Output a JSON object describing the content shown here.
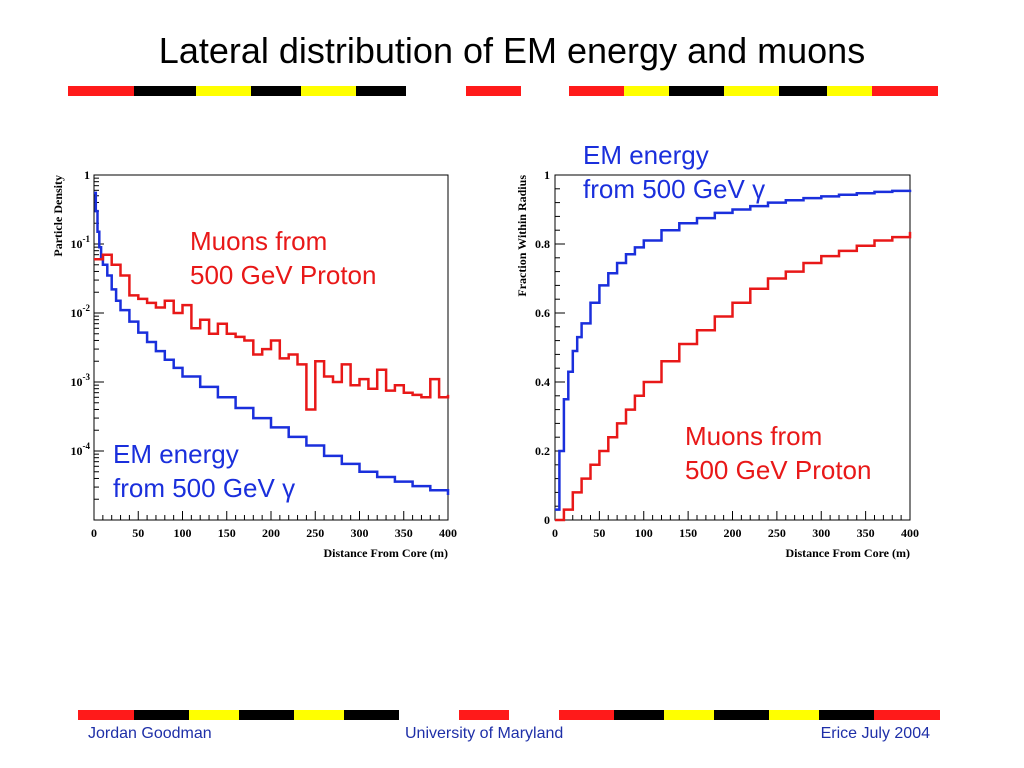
{
  "slide": {
    "title": "Lateral distribution of EM energy and muons",
    "footer": {
      "left": "Jordan Goodman",
      "center": "University of Maryland",
      "right": "Erice July 2004"
    },
    "colors": {
      "band_red": "#ff1a1a",
      "band_black": "#000000",
      "band_yellow": "#ffff00",
      "footer_text": "#1e2fa8",
      "em_series": "#1a2fdc",
      "muon_series": "#e81818"
    }
  },
  "chart_data": [
    {
      "type": "line",
      "step": true,
      "log_y": true,
      "xlabel": "Distance From Core (m)",
      "ylabel": "Particle Density",
      "xlim": [
        0,
        400
      ],
      "ylim": [
        1e-05,
        1
      ],
      "x_ticks": [
        "0",
        "50",
        "100",
        "150",
        "200",
        "250",
        "300",
        "350",
        "400"
      ],
      "y_ticks": [
        "1",
        "10^-1",
        "10^-2",
        "10^-3",
        "10^-4"
      ],
      "annotations": [
        {
          "lines": [
            "Muons from",
            "500 GeV Proton"
          ],
          "series": "muon"
        },
        {
          "lines": [
            "EM energy",
            "from 500 GeV γ"
          ],
          "series": "em"
        }
      ],
      "series": [
        {
          "key": "em",
          "color": "#1a2fdc",
          "x": [
            0,
            2,
            4,
            6,
            8,
            10,
            15,
            20,
            25,
            30,
            40,
            50,
            60,
            70,
            80,
            90,
            100,
            120,
            140,
            160,
            180,
            200,
            220,
            240,
            260,
            280,
            300,
            320,
            340,
            360,
            380,
            400
          ],
          "values": [
            0.55,
            0.3,
            0.15,
            0.09,
            0.065,
            0.05,
            0.035,
            0.022,
            0.015,
            0.011,
            0.0075,
            0.0052,
            0.0038,
            0.0028,
            0.0021,
            0.0016,
            0.0012,
            0.00085,
            0.0006,
            0.00042,
            0.0003,
            0.00022,
            0.00016,
            0.00012,
            8.5e-05,
            6.5e-05,
            5e-05,
            4.2e-05,
            3.6e-05,
            3.1e-05,
            2.7e-05,
            2.3e-05
          ]
        },
        {
          "key": "muon",
          "color": "#e81818",
          "x": [
            0,
            10,
            20,
            30,
            40,
            50,
            60,
            70,
            80,
            90,
            100,
            110,
            120,
            130,
            140,
            150,
            160,
            170,
            180,
            190,
            200,
            210,
            220,
            230,
            240,
            250,
            260,
            270,
            280,
            290,
            300,
            310,
            320,
            330,
            340,
            350,
            360,
            370,
            380,
            390,
            400
          ],
          "values": [
            0.06,
            0.07,
            0.05,
            0.035,
            0.018,
            0.016,
            0.014,
            0.012,
            0.015,
            0.01,
            0.013,
            0.006,
            0.008,
            0.005,
            0.007,
            0.005,
            0.0045,
            0.004,
            0.0025,
            0.003,
            0.004,
            0.0022,
            0.0025,
            0.0018,
            0.0004,
            0.002,
            0.0012,
            0.001,
            0.0018,
            0.0009,
            0.0011,
            0.0008,
            0.0015,
            0.00075,
            0.0009,
            0.0007,
            0.00065,
            0.0006,
            0.0011,
            0.0006,
            0.00065
          ]
        }
      ]
    },
    {
      "type": "line",
      "step": true,
      "xlabel": "Distance From Core (m)",
      "ylabel": "Fraction Within Radius",
      "xlim": [
        0,
        400
      ],
      "ylim": [
        0,
        1
      ],
      "x_ticks": [
        "0",
        "50",
        "100",
        "150",
        "200",
        "250",
        "300",
        "350",
        "400"
      ],
      "y_ticks": [
        "0",
        "0.2",
        "0.4",
        "0.6",
        "0.8",
        "1"
      ],
      "annotations": [
        {
          "lines": [
            "EM energy",
            "from 500 GeV γ"
          ],
          "series": "em"
        },
        {
          "lines": [
            "Muons from",
            "500 GeV Proton"
          ],
          "series": "muon"
        }
      ],
      "series": [
        {
          "key": "em",
          "color": "#1a2fdc",
          "x": [
            0,
            5,
            10,
            15,
            20,
            25,
            30,
            40,
            50,
            60,
            70,
            80,
            90,
            100,
            120,
            140,
            160,
            180,
            200,
            220,
            240,
            260,
            280,
            300,
            320,
            340,
            360,
            380,
            400
          ],
          "values": [
            0.03,
            0.2,
            0.35,
            0.43,
            0.49,
            0.53,
            0.57,
            0.63,
            0.68,
            0.715,
            0.745,
            0.77,
            0.79,
            0.81,
            0.84,
            0.86,
            0.875,
            0.89,
            0.9,
            0.91,
            0.92,
            0.927,
            0.933,
            0.938,
            0.943,
            0.947,
            0.951,
            0.954,
            0.957
          ]
        },
        {
          "key": "muon",
          "color": "#e81818",
          "x": [
            0,
            10,
            20,
            30,
            40,
            50,
            60,
            70,
            80,
            90,
            100,
            120,
            140,
            160,
            180,
            200,
            220,
            240,
            260,
            280,
            300,
            320,
            340,
            360,
            380,
            400
          ],
          "values": [
            0.0,
            0.03,
            0.08,
            0.12,
            0.16,
            0.2,
            0.24,
            0.28,
            0.32,
            0.36,
            0.4,
            0.46,
            0.51,
            0.55,
            0.59,
            0.63,
            0.67,
            0.7,
            0.72,
            0.745,
            0.765,
            0.78,
            0.795,
            0.81,
            0.82,
            0.835
          ]
        }
      ]
    }
  ]
}
